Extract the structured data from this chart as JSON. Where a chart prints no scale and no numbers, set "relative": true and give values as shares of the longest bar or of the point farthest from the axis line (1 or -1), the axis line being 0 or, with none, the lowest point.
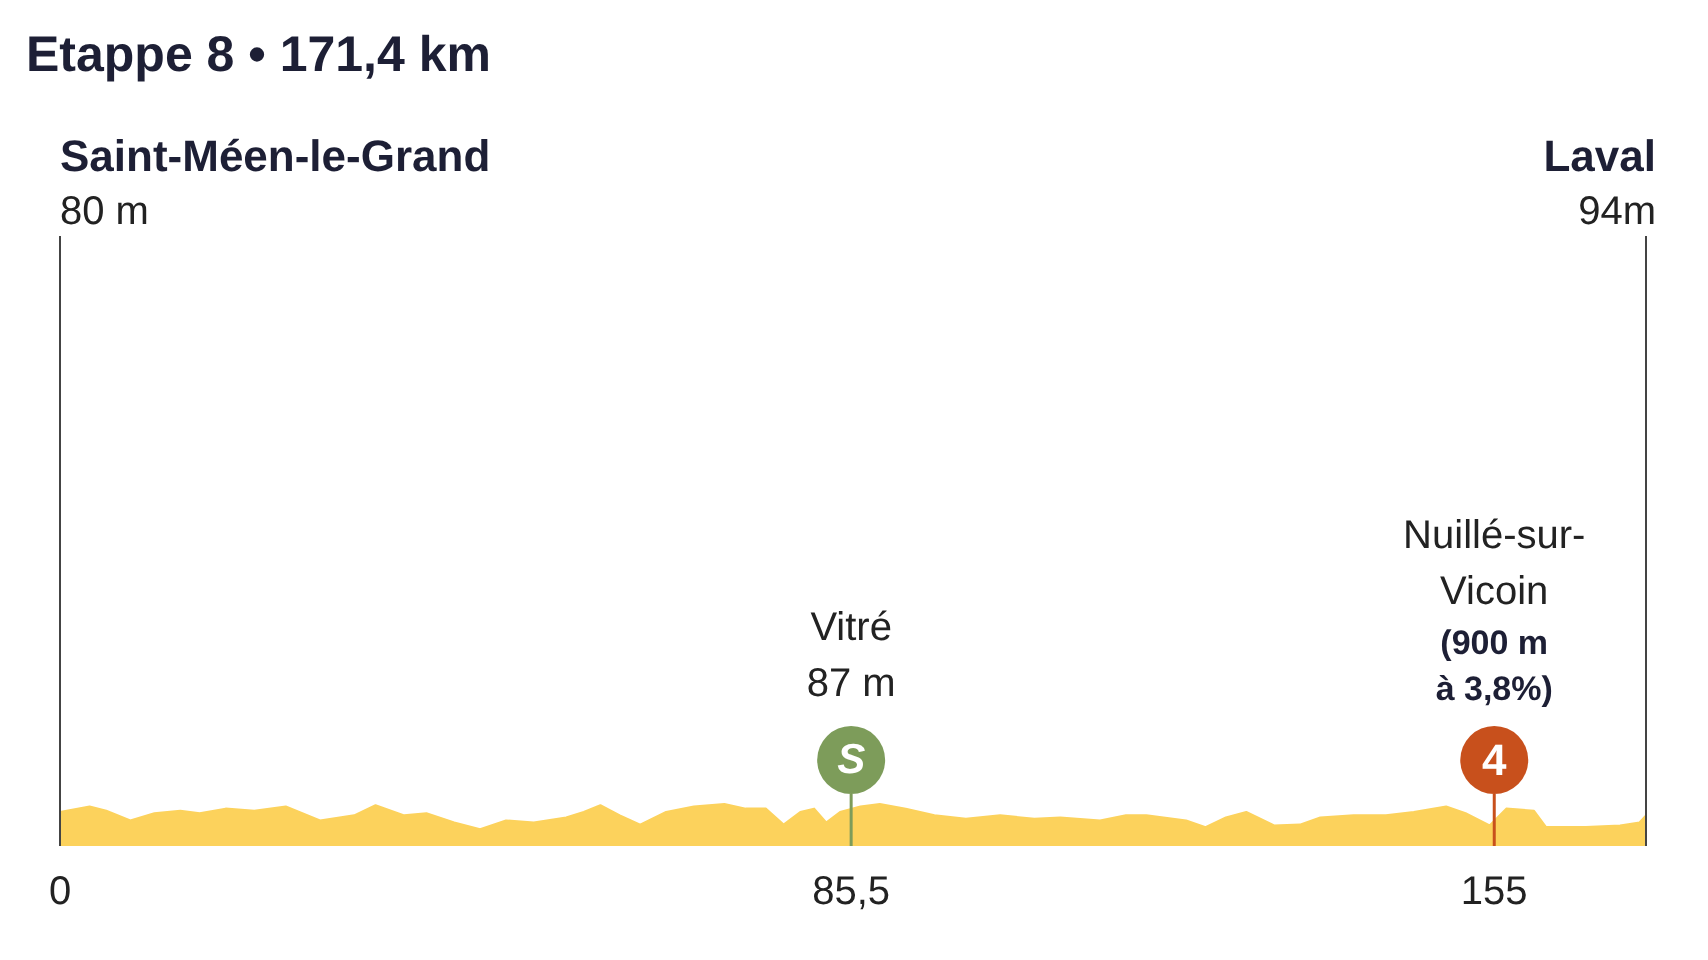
{
  "chart_data": {
    "type": "area",
    "title": "Etappe 8 • 171,4 km",
    "relative": true,
    "color": "#fcd25c",
    "x": [
      0,
      3.2,
      5.0,
      7.6,
      10.2,
      13.0,
      15.1,
      17.9,
      21.0,
      24.4,
      28.1,
      31.8,
      34.1,
      37.2,
      39.6,
      42.6,
      45.4,
      48.2,
      51.2,
      54.7,
      56.6,
      58.4,
      60.5,
      62.7,
      65.5,
      68.5,
      71.8,
      74.1,
      76.3,
      78.2,
      80.0,
      81.5,
      82.8,
      84.3,
      86.5,
      88.6,
      91.4,
      94.5,
      97.9,
      101.6,
      105.3,
      108.1,
      112.4,
      115.2,
      117.4,
      121.7,
      123.8,
      126.0,
      128.2,
      131.2,
      134.0,
      136.2,
      139.8,
      143.3,
      146.3,
      149.8,
      151.9,
      154.5,
      156.3,
      159.3,
      160.6,
      164.9,
      168.6,
      170.7,
      171.4
    ],
    "values": [
      0.81,
      0.94,
      0.84,
      0.61,
      0.78,
      0.84,
      0.78,
      0.89,
      0.84,
      0.94,
      0.61,
      0.73,
      0.97,
      0.73,
      0.78,
      0.56,
      0.4,
      0.61,
      0.56,
      0.68,
      0.81,
      0.97,
      0.73,
      0.51,
      0.81,
      0.94,
      1,
      0.89,
      0.89,
      0.51,
      0.81,
      0.89,
      0.56,
      0.81,
      0.94,
      1,
      0.89,
      0.73,
      0.65,
      0.73,
      0.65,
      0.68,
      0.61,
      0.73,
      0.73,
      0.61,
      0.45,
      0.68,
      0.81,
      0.49,
      0.51,
      0.68,
      0.73,
      0.73,
      0.81,
      0.94,
      0.78,
      0.49,
      0.89,
      0.84,
      0.45,
      0.45,
      0.49,
      0.56,
      0.73
    ],
    "xlim": [
      0,
      171.4
    ],
    "xticks": [
      0,
      {
        "value": 85.5,
        "label": "85,5"
      },
      155
    ],
    "ref_lines": [
      {
        "axis": "x",
        "value": 0,
        "label": "Saint-Méen-le-Grand",
        "color": "#444444"
      },
      {
        "axis": "x",
        "value": 171.4,
        "label": "Laval",
        "color": "#444444"
      },
      {
        "axis": "x",
        "value": 85.5,
        "color": "#7d9c5a"
      },
      {
        "axis": "x",
        "value": 155,
        "color": "#c8501c"
      }
    ],
    "annotations": [
      "80 m",
      "94m",
      "Vitré",
      "87 m",
      "Nuillé-sur-\nVicoin",
      "(900 m\nà 3,8%)",
      "S",
      "4"
    ]
  }
}
